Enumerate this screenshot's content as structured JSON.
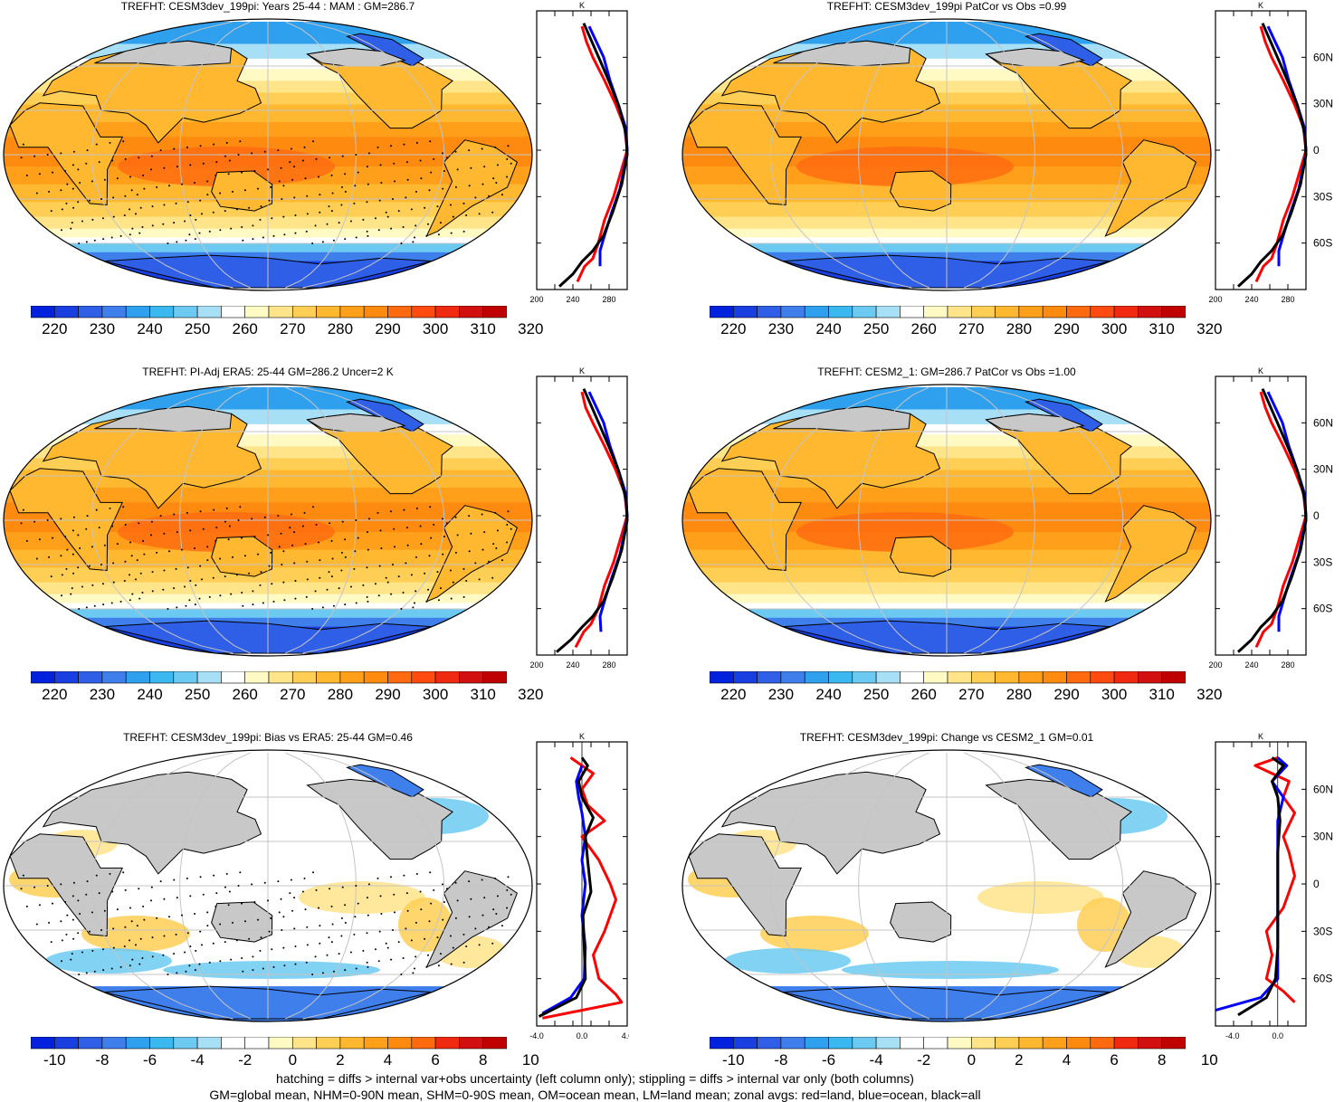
{
  "colors": {
    "land": "#c8c8c8",
    "coast": "#000000",
    "grid": "#c4c4c4",
    "zonal_land": "#ff0000",
    "zonal_ocean": "#0000ff",
    "zonal_all": "#000000"
  },
  "abs_colorbar": {
    "labels": [
      "220",
      "230",
      "240",
      "250",
      "260",
      "270",
      "280",
      "290",
      "300",
      "310",
      "320"
    ],
    "colors": [
      "#0022dd",
      "#1a3fe0",
      "#2f5fe6",
      "#3f7fec",
      "#2fa0ee",
      "#3cb8f0",
      "#6ccaf2",
      "#a6dff6",
      "#ffffff",
      "#fff9c4",
      "#ffe48a",
      "#ffcf55",
      "#ffb830",
      "#ff9f1a",
      "#ff8a10",
      "#ff6a10",
      "#ff4a10",
      "#ef2a10",
      "#d21010",
      "#c00000"
    ]
  },
  "diff_colorbar": {
    "labels": [
      "-10",
      "-8",
      "-6",
      "-4",
      "-2",
      "0",
      "2",
      "4",
      "6",
      "8",
      "10"
    ],
    "colors": [
      "#0022dd",
      "#1a3fe0",
      "#2f5fe6",
      "#3f7fec",
      "#2fa0ee",
      "#3cb8f0",
      "#6ccaf2",
      "#a6dff6",
      "#ffffff",
      "#ffffff",
      "#fff9c4",
      "#ffe48a",
      "#ffcf55",
      "#ffb830",
      "#ff9f1a",
      "#ff8a10",
      "#ff6a10",
      "#ef2a10",
      "#d21010",
      "#c00000"
    ]
  },
  "lat_labels": [
    "60N",
    "30N",
    "0",
    "30S",
    "60S"
  ],
  "zonal_unit": "K",
  "chart_data": [
    {
      "type": "heatmap",
      "title": "TREFHT: CESM3dev_199pi: Years 25-44 : MAM : GM=286.7",
      "zonal_xticks": [
        "200",
        "240",
        "280"
      ],
      "zonal_xlim": [
        200,
        300
      ],
      "zonal_land": [
        [
          245,
          -85
        ],
        [
          253,
          -75
        ],
        [
          262,
          -70
        ],
        [
          268,
          -60
        ],
        [
          275,
          -45
        ],
        [
          285,
          -30
        ],
        [
          295,
          -10
        ],
        [
          300,
          0
        ],
        [
          297,
          15
        ],
        [
          287,
          30
        ],
        [
          275,
          45
        ],
        [
          262,
          60
        ],
        [
          255,
          70
        ],
        [
          250,
          80
        ]
      ],
      "zonal_ocean": [
        [
          270,
          -75
        ],
        [
          270,
          -65
        ],
        [
          275,
          -55
        ],
        [
          283,
          -40
        ],
        [
          292,
          -25
        ],
        [
          299,
          -5
        ],
        [
          300,
          0
        ],
        [
          298,
          15
        ],
        [
          290,
          30
        ],
        [
          281,
          45
        ],
        [
          274,
          60
        ],
        [
          266,
          70
        ],
        [
          258,
          80
        ]
      ],
      "zonal_all": [
        [
          225,
          -88
        ],
        [
          240,
          -80
        ],
        [
          250,
          -72
        ],
        [
          262,
          -65
        ],
        [
          274,
          -55
        ],
        [
          284,
          -40
        ],
        [
          294,
          -22
        ],
        [
          300,
          -3
        ],
        [
          299,
          10
        ],
        [
          291,
          28
        ],
        [
          281,
          43
        ],
        [
          270,
          58
        ],
        [
          261,
          70
        ],
        [
          252,
          82
        ]
      ]
    },
    {
      "type": "heatmap",
      "title": "TREFHT: CESM3dev_199pi PatCor vs Obs =0.99",
      "zonal_xticks": [
        "200",
        "240",
        "280"
      ],
      "zonal_xlim": [
        200,
        300
      ],
      "zonal_land": [
        [
          245,
          -85
        ],
        [
          253,
          -75
        ],
        [
          262,
          -70
        ],
        [
          268,
          -60
        ],
        [
          275,
          -45
        ],
        [
          285,
          -30
        ],
        [
          295,
          -10
        ],
        [
          300,
          0
        ],
        [
          297,
          15
        ],
        [
          287,
          30
        ],
        [
          275,
          45
        ],
        [
          262,
          60
        ],
        [
          255,
          70
        ],
        [
          250,
          80
        ]
      ],
      "zonal_ocean": [
        [
          270,
          -75
        ],
        [
          270,
          -65
        ],
        [
          275,
          -55
        ],
        [
          283,
          -40
        ],
        [
          292,
          -25
        ],
        [
          299,
          -5
        ],
        [
          300,
          0
        ],
        [
          298,
          15
        ],
        [
          290,
          30
        ],
        [
          281,
          45
        ],
        [
          274,
          60
        ],
        [
          266,
          70
        ],
        [
          258,
          80
        ]
      ],
      "zonal_all": [
        [
          225,
          -88
        ],
        [
          240,
          -80
        ],
        [
          250,
          -72
        ],
        [
          262,
          -65
        ],
        [
          274,
          -55
        ],
        [
          284,
          -40
        ],
        [
          294,
          -22
        ],
        [
          300,
          -3
        ],
        [
          299,
          10
        ],
        [
          291,
          28
        ],
        [
          281,
          43
        ],
        [
          270,
          58
        ],
        [
          261,
          70
        ],
        [
          252,
          82
        ]
      ]
    },
    {
      "type": "heatmap",
      "title": "TREFHT: PI-Adj ERA5: 25-44 GM=286.2 Uncer=2 K",
      "zonal_xticks": [
        "200",
        "240",
        "280"
      ],
      "zonal_xlim": [
        200,
        300
      ],
      "zonal_land": [
        [
          243,
          -85
        ],
        [
          252,
          -75
        ],
        [
          260,
          -70
        ],
        [
          268,
          -60
        ],
        [
          275,
          -45
        ],
        [
          285,
          -30
        ],
        [
          295,
          -10
        ],
        [
          300,
          0
        ],
        [
          297,
          15
        ],
        [
          287,
          30
        ],
        [
          275,
          45
        ],
        [
          262,
          60
        ],
        [
          254,
          70
        ],
        [
          250,
          80
        ]
      ],
      "zonal_ocean": [
        [
          271,
          -75
        ],
        [
          270,
          -65
        ],
        [
          275,
          -55
        ],
        [
          283,
          -40
        ],
        [
          292,
          -25
        ],
        [
          299,
          -5
        ],
        [
          300,
          0
        ],
        [
          298,
          15
        ],
        [
          290,
          30
        ],
        [
          281,
          45
        ],
        [
          274,
          60
        ],
        [
          266,
          70
        ],
        [
          258,
          80
        ]
      ],
      "zonal_all": [
        [
          222,
          -88
        ],
        [
          238,
          -80
        ],
        [
          250,
          -72
        ],
        [
          262,
          -65
        ],
        [
          274,
          -55
        ],
        [
          284,
          -40
        ],
        [
          294,
          -22
        ],
        [
          300,
          -3
        ],
        [
          299,
          10
        ],
        [
          291,
          28
        ],
        [
          281,
          43
        ],
        [
          270,
          58
        ],
        [
          261,
          70
        ],
        [
          252,
          82
        ]
      ]
    },
    {
      "type": "heatmap",
      "title": "TREFHT: CESM2_1: GM=286.7 PatCor vs Obs =1.00",
      "zonal_xticks": [
        "200",
        "240",
        "280"
      ],
      "zonal_xlim": [
        200,
        300
      ],
      "zonal_land": [
        [
          245,
          -85
        ],
        [
          253,
          -75
        ],
        [
          262,
          -70
        ],
        [
          268,
          -60
        ],
        [
          275,
          -45
        ],
        [
          285,
          -30
        ],
        [
          295,
          -10
        ],
        [
          300,
          0
        ],
        [
          297,
          15
        ],
        [
          287,
          30
        ],
        [
          275,
          45
        ],
        [
          262,
          60
        ],
        [
          255,
          70
        ],
        [
          250,
          80
        ]
      ],
      "zonal_ocean": [
        [
          270,
          -75
        ],
        [
          270,
          -65
        ],
        [
          275,
          -55
        ],
        [
          283,
          -40
        ],
        [
          292,
          -25
        ],
        [
          299,
          -5
        ],
        [
          300,
          0
        ],
        [
          298,
          15
        ],
        [
          290,
          30
        ],
        [
          281,
          45
        ],
        [
          274,
          60
        ],
        [
          266,
          70
        ],
        [
          258,
          80
        ]
      ],
      "zonal_all": [
        [
          225,
          -88
        ],
        [
          240,
          -80
        ],
        [
          250,
          -72
        ],
        [
          262,
          -65
        ],
        [
          274,
          -55
        ],
        [
          284,
          -40
        ],
        [
          294,
          -22
        ],
        [
          300,
          -3
        ],
        [
          299,
          10
        ],
        [
          291,
          28
        ],
        [
          281,
          43
        ],
        [
          270,
          58
        ],
        [
          261,
          70
        ],
        [
          252,
          82
        ]
      ]
    },
    {
      "type": "heatmap",
      "title": "TREFHT: CESM3dev_199pi: Bias vs ERA5: 25-44 GM=0.46",
      "zonal_xticks": [
        "-4.0",
        "0.0",
        "4.0"
      ],
      "zonal_xlim": [
        -4,
        4
      ],
      "zonal_land": [
        [
          -3.5,
          -85
        ],
        [
          3.5,
          -75
        ],
        [
          3,
          -70
        ],
        [
          1.5,
          -60
        ],
        [
          1,
          -45
        ],
        [
          2,
          -30
        ],
        [
          3,
          -10
        ],
        [
          2.5,
          0
        ],
        [
          1.5,
          15
        ],
        [
          0,
          30
        ],
        [
          2,
          40
        ],
        [
          0.5,
          50
        ],
        [
          0,
          60
        ],
        [
          1,
          70
        ],
        [
          -1,
          80
        ]
      ],
      "zonal_ocean": [
        [
          -3.5,
          -82
        ],
        [
          -1,
          -72
        ],
        [
          0.2,
          -60
        ],
        [
          0.3,
          -40
        ],
        [
          0,
          -20
        ],
        [
          0.3,
          0
        ],
        [
          0,
          15
        ],
        [
          0.3,
          30
        ],
        [
          0,
          45
        ],
        [
          -0.3,
          55
        ],
        [
          -0.5,
          65
        ],
        [
          0,
          75
        ]
      ],
      "zonal_all": [
        [
          -3.8,
          -84
        ],
        [
          -0.5,
          -72
        ],
        [
          0.3,
          -60
        ],
        [
          0.2,
          -40
        ],
        [
          0.1,
          -20
        ],
        [
          0.8,
          -5
        ],
        [
          0.5,
          15
        ],
        [
          0.3,
          30
        ],
        [
          1,
          42
        ],
        [
          0,
          55
        ],
        [
          -0.3,
          65
        ],
        [
          0.5,
          75
        ],
        [
          0,
          80
        ]
      ]
    },
    {
      "type": "heatmap",
      "title": "TREFHT: CESM3dev_199pi: Change vs CESM2_1 GM=0.01",
      "zonal_xticks": [
        "-4.0",
        "0.0"
      ],
      "zonal_xlim": [
        -5.5,
        2.5
      ],
      "zonal_land": [
        [
          1.5,
          -75
        ],
        [
          0.5,
          -68
        ],
        [
          -1,
          -60
        ],
        [
          -0.5,
          -45
        ],
        [
          -1,
          -30
        ],
        [
          0.5,
          -15
        ],
        [
          1,
          -5
        ],
        [
          1.5,
          5
        ],
        [
          1,
          20
        ],
        [
          0.5,
          30
        ],
        [
          1.5,
          45
        ],
        [
          0.5,
          55
        ],
        [
          1,
          65
        ],
        [
          -2,
          75
        ],
        [
          0,
          80
        ]
      ],
      "zonal_ocean": [
        [
          -5.5,
          -80
        ],
        [
          -1.5,
          -72
        ],
        [
          0,
          -60
        ],
        [
          0,
          -40
        ],
        [
          0,
          -20
        ],
        [
          0,
          0
        ],
        [
          0,
          20
        ],
        [
          0,
          40
        ],
        [
          0.5,
          55
        ],
        [
          -0.5,
          65
        ],
        [
          0.8,
          75
        ],
        [
          0,
          80
        ]
      ],
      "zonal_all": [
        [
          -3.5,
          -83
        ],
        [
          -1,
          -72
        ],
        [
          -0.2,
          -60
        ],
        [
          0,
          -40
        ],
        [
          0,
          -20
        ],
        [
          0,
          0
        ],
        [
          0,
          20
        ],
        [
          0.2,
          40
        ],
        [
          0,
          55
        ],
        [
          -0.5,
          65
        ],
        [
          0.5,
          75
        ],
        [
          -0.5,
          80
        ]
      ]
    }
  ],
  "footer": {
    "line1": "hatching = diffs > internal var+obs uncertainty (left column only); stippling = diffs > internal var only (both columns)",
    "line2": "GM=global mean, NHM=0-90N mean, SHM=0-90S mean, OM=ocean mean, LM=land mean; zonal avgs: red=land, blue=ocean, black=all"
  }
}
